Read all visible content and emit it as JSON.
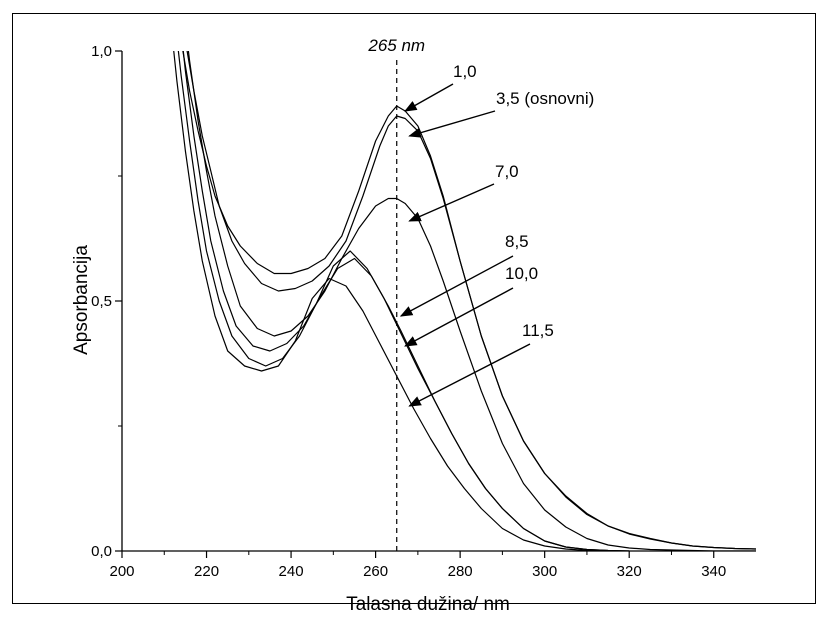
{
  "chart_data": {
    "type": "line",
    "title": "",
    "xlabel": "Talasna dužina/ nm",
    "ylabel": "Apsorbancija",
    "xlim": [
      200,
      350
    ],
    "ylim": [
      0,
      1
    ],
    "x_ticks": [
      {
        "value": 200,
        "label": "200"
      },
      {
        "value": 220,
        "label": "220"
      },
      {
        "value": 240,
        "label": "240"
      },
      {
        "value": 260,
        "label": "260"
      },
      {
        "value": 280,
        "label": "280"
      },
      {
        "value": 300,
        "label": "300"
      },
      {
        "value": 320,
        "label": "320"
      },
      {
        "value": 340,
        "label": "340"
      }
    ],
    "y_ticks": [
      {
        "value": 0,
        "label": "0,0"
      },
      {
        "value": 0.5,
        "label": "0,5"
      },
      {
        "value": 1,
        "label": "1,0"
      }
    ],
    "reference_line": {
      "x": 265,
      "label": "265 nm",
      "style": "dashed"
    },
    "legend": "none",
    "grid": false,
    "series": [
      {
        "name": "1,0",
        "label_at": [
          267,
          0.88
        ],
        "x": [
          210,
          212,
          214,
          216,
          218,
          220,
          222,
          225,
          228,
          232,
          236,
          240,
          244,
          248,
          252,
          256,
          260,
          263,
          265,
          267,
          270,
          273,
          276,
          280,
          285,
          290,
          295,
          300,
          305,
          310,
          315,
          320,
          325,
          330,
          335,
          340,
          345,
          350
        ],
        "y": [
          1.3,
          1.15,
          1.02,
          0.92,
          0.84,
          0.77,
          0.71,
          0.65,
          0.61,
          0.575,
          0.555,
          0.555,
          0.565,
          0.585,
          0.63,
          0.72,
          0.82,
          0.87,
          0.89,
          0.88,
          0.85,
          0.79,
          0.71,
          0.58,
          0.43,
          0.31,
          0.22,
          0.155,
          0.11,
          0.075,
          0.05,
          0.035,
          0.025,
          0.016,
          0.01,
          0.007,
          0.005,
          0.004
        ]
      },
      {
        "name": "3,5 (osnovni)",
        "label_at": [
          268,
          0.83
        ],
        "x": [
          211,
          213,
          215,
          217,
          219,
          221,
          223,
          226,
          229,
          233,
          237,
          241,
          245,
          249,
          253,
          257,
          261,
          263,
          265,
          267,
          270,
          273,
          276,
          280,
          285,
          290,
          295,
          300,
          305,
          310,
          315,
          320,
          325,
          330,
          335,
          340,
          345,
          350
        ],
        "y": [
          1.3,
          1.15,
          1.02,
          0.92,
          0.83,
          0.76,
          0.69,
          0.62,
          0.575,
          0.535,
          0.52,
          0.525,
          0.54,
          0.57,
          0.62,
          0.71,
          0.81,
          0.85,
          0.87,
          0.865,
          0.84,
          0.785,
          0.705,
          0.58,
          0.43,
          0.31,
          0.22,
          0.155,
          0.108,
          0.073,
          0.05,
          0.034,
          0.024,
          0.016,
          0.01,
          0.007,
          0.005,
          0.004
        ]
      },
      {
        "name": "7,0",
        "label_at": [
          268,
          0.66
        ],
        "x": [
          212,
          214,
          216,
          218,
          220,
          222,
          225,
          228,
          232,
          236,
          240,
          244,
          248,
          252,
          256,
          260,
          263,
          265,
          267,
          270,
          273,
          276,
          280,
          285,
          290,
          295,
          300,
          305,
          310,
          315,
          320,
          325,
          330,
          335,
          340,
          345,
          350
        ],
        "y": [
          1.3,
          1.12,
          0.98,
          0.86,
          0.76,
          0.67,
          0.57,
          0.49,
          0.445,
          0.43,
          0.44,
          0.47,
          0.52,
          0.585,
          0.645,
          0.69,
          0.705,
          0.705,
          0.695,
          0.665,
          0.61,
          0.54,
          0.44,
          0.32,
          0.215,
          0.135,
          0.082,
          0.048,
          0.025,
          0.012,
          0.006,
          0.003,
          0.002,
          0.001,
          0,
          0,
          0
        ]
      },
      {
        "name": "8,5",
        "label_at": [
          266,
          0.47
        ],
        "x": [
          211,
          213,
          215,
          217,
          219,
          221,
          224,
          227,
          231,
          235,
          239,
          243,
          247,
          251,
          255,
          259,
          263,
          266,
          270,
          274,
          278,
          282,
          286,
          290,
          295,
          300,
          305,
          310,
          315,
          320
        ],
        "y": [
          1.3,
          1.12,
          0.96,
          0.83,
          0.72,
          0.62,
          0.52,
          0.45,
          0.41,
          0.4,
          0.415,
          0.45,
          0.51,
          0.565,
          0.585,
          0.55,
          0.49,
          0.44,
          0.37,
          0.3,
          0.235,
          0.175,
          0.125,
          0.085,
          0.045,
          0.02,
          0.008,
          0.003,
          0.001,
          0
        ]
      },
      {
        "name": "10,0",
        "label_at": [
          267,
          0.41
        ],
        "x": [
          210,
          212,
          214,
          216,
          218,
          220,
          223,
          226,
          230,
          234,
          238,
          242,
          246,
          250,
          254,
          258,
          262,
          266,
          270,
          274,
          278,
          282,
          286,
          290,
          295,
          300,
          305,
          310,
          315,
          320
        ],
        "y": [
          1.3,
          1.1,
          0.95,
          0.82,
          0.7,
          0.6,
          0.5,
          0.43,
          0.385,
          0.37,
          0.385,
          0.43,
          0.495,
          0.57,
          0.6,
          0.565,
          0.505,
          0.435,
          0.365,
          0.3,
          0.235,
          0.175,
          0.125,
          0.085,
          0.045,
          0.02,
          0.008,
          0.003,
          0.001,
          0
        ]
      },
      {
        "name": "11,5",
        "label_at": [
          268,
          0.29
        ],
        "x": [
          209,
          211,
          213,
          215,
          217,
          219,
          222,
          225,
          229,
          233,
          237,
          241,
          245,
          249,
          253,
          257,
          261,
          265,
          269,
          273,
          277,
          281,
          285,
          290,
          295,
          300,
          305,
          310,
          315
        ],
        "y": [
          1.3,
          1.1,
          0.94,
          0.8,
          0.68,
          0.58,
          0.47,
          0.4,
          0.37,
          0.36,
          0.37,
          0.42,
          0.505,
          0.545,
          0.53,
          0.48,
          0.415,
          0.35,
          0.285,
          0.225,
          0.17,
          0.125,
          0.085,
          0.045,
          0.022,
          0.01,
          0.004,
          0.001,
          0
        ]
      }
    ]
  }
}
